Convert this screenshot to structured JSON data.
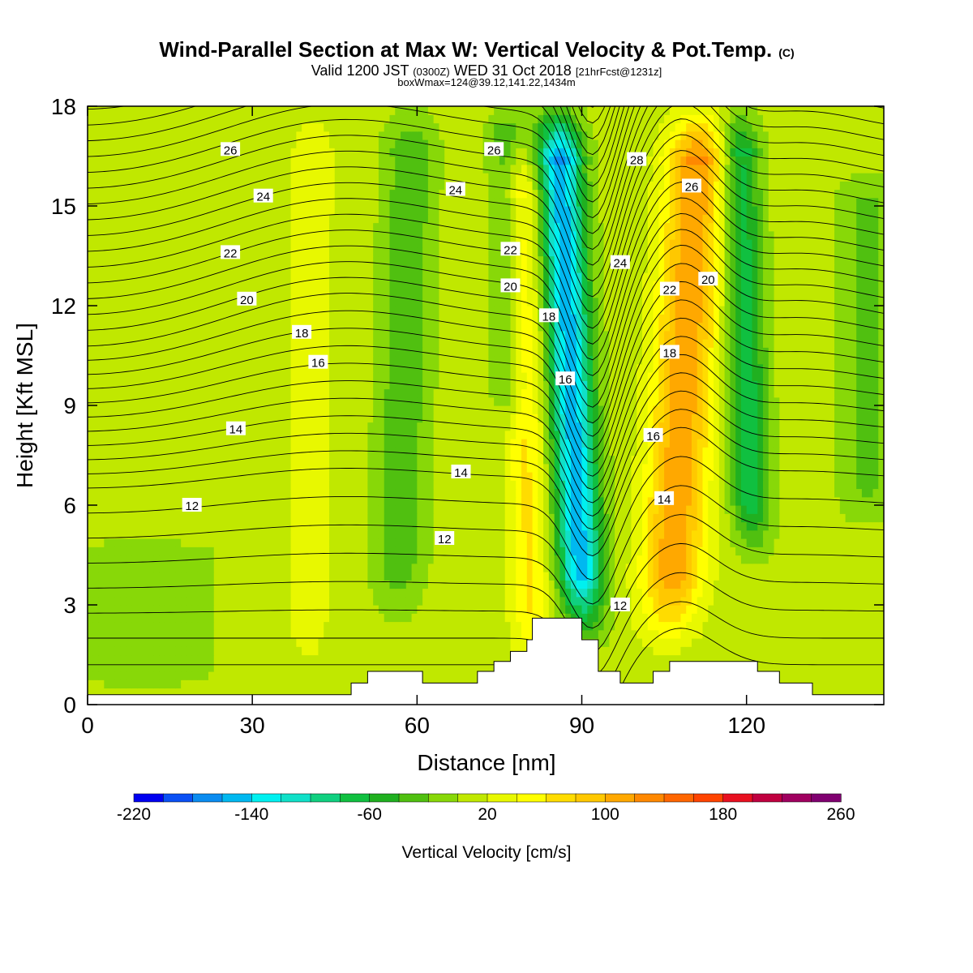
{
  "header": {
    "title_main": "Wind-Parallel Section at Max W: Vertical Velocity & Pot.Temp.",
    "title_copyright": "(C)",
    "valid_prefix": "Valid 1200 JST",
    "valid_utc": "(0300Z)",
    "valid_date": "WED 31 Oct 2018",
    "valid_fcst": "[21hrFcst@1231z]",
    "box_info": "boxWmax=124@39.12,141.22,1434m"
  },
  "chart_data": {
    "type": "heatmap",
    "xlabel": "Distance [nm]",
    "ylabel": "Height [Kft MSL]",
    "xlim": [
      0,
      145
    ],
    "ylim": [
      0,
      18
    ],
    "x_ticks": [
      0,
      30,
      60,
      90,
      120
    ],
    "y_ticks": [
      0,
      3,
      6,
      9,
      12,
      15,
      18
    ],
    "colorbar": {
      "label": "Vertical Velocity [cm/s]",
      "min": -220,
      "max": 260,
      "step": 20,
      "tick_labels": [
        "-220",
        "-140",
        "-60",
        "20",
        "100",
        "180",
        "260"
      ],
      "colors": [
        "#0000f0",
        "#0a50f4",
        "#0a8cf0",
        "#00b8f0",
        "#00f0f0",
        "#10e0c8",
        "#10d080",
        "#10c040",
        "#20b020",
        "#50c010",
        "#88d808",
        "#c0e800",
        "#e8f800",
        "#ffff00",
        "#ffdc00",
        "#ffc800",
        "#ffa800",
        "#ff8800",
        "#ff6600",
        "#ff4400",
        "#e81020",
        "#c00040",
        "#a00060",
        "#800070"
      ]
    },
    "velocity_field": {
      "background": 8,
      "features": [
        {
          "kind": "updraft",
          "x": 40,
          "y_bottom": 0.3,
          "y_top": 18,
          "half_width": 4,
          "tilt": 1.0,
          "peak": 28
        },
        {
          "kind": "updraft",
          "x": 81,
          "y_bottom": 0.3,
          "y_top": 17,
          "half_width": 3.5,
          "tilt": -2.5,
          "peak": 55
        },
        {
          "kind": "downdraft",
          "x": 91,
          "y_bottom": 1.5,
          "y_top": 18,
          "half_width": 4,
          "tilt": -5.5,
          "peak": -160
        },
        {
          "kind": "updraft",
          "x": 105,
          "y_bottom": 1.3,
          "y_top": 18,
          "half_width": 5.5,
          "tilt": 6.5,
          "peak": 110
        },
        {
          "kind": "downdraft",
          "x": 122,
          "y_bottom": 4,
          "y_top": 18,
          "half_width": 3.5,
          "tilt": -3.5,
          "peak": -80
        },
        {
          "kind": "downdraft",
          "x": 56,
          "y_bottom": 2,
          "y_top": 18,
          "half_width": 4.5,
          "tilt": 3,
          "peak": -45
        },
        {
          "kind": "downdraft",
          "x": 78,
          "y_bottom": 8,
          "y_top": 18,
          "half_width": 3,
          "tilt": -2,
          "peak": -45
        },
        {
          "kind": "downdraft",
          "x": 10,
          "y_bottom": 0.3,
          "y_top": 5,
          "half_width": 12,
          "tilt": 0,
          "peak": -25
        },
        {
          "kind": "downdraft",
          "x": 142,
          "y_bottom": 5,
          "y_top": 16,
          "half_width": 5,
          "tilt": 0,
          "peak": -35
        }
      ]
    },
    "terrain": [
      {
        "x": 0,
        "h": 0.3
      },
      {
        "x": 48,
        "h": 0.3
      },
      {
        "x": 48,
        "h": 0.65
      },
      {
        "x": 51,
        "h": 0.65
      },
      {
        "x": 51,
        "h": 1.0
      },
      {
        "x": 61,
        "h": 1.0
      },
      {
        "x": 61,
        "h": 0.65
      },
      {
        "x": 71,
        "h": 0.65
      },
      {
        "x": 71,
        "h": 1.0
      },
      {
        "x": 74,
        "h": 1.0
      },
      {
        "x": 74,
        "h": 1.3
      },
      {
        "x": 77,
        "h": 1.3
      },
      {
        "x": 77,
        "h": 1.6
      },
      {
        "x": 80,
        "h": 1.6
      },
      {
        "x": 80,
        "h": 1.95
      },
      {
        "x": 81,
        "h": 1.95
      },
      {
        "x": 81,
        "h": 2.6
      },
      {
        "x": 90,
        "h": 2.6
      },
      {
        "x": 90,
        "h": 1.95
      },
      {
        "x": 93,
        "h": 1.95
      },
      {
        "x": 93,
        "h": 1.0
      },
      {
        "x": 97,
        "h": 1.0
      },
      {
        "x": 97,
        "h": 0.65
      },
      {
        "x": 103,
        "h": 0.65
      },
      {
        "x": 103,
        "h": 1.0
      },
      {
        "x": 106,
        "h": 1.0
      },
      {
        "x": 106,
        "h": 1.3
      },
      {
        "x": 122,
        "h": 1.3
      },
      {
        "x": 122,
        "h": 1.0
      },
      {
        "x": 126,
        "h": 1.0
      },
      {
        "x": 126,
        "h": 0.65
      },
      {
        "x": 132,
        "h": 0.65
      },
      {
        "x": 132,
        "h": 0.3
      },
      {
        "x": 145,
        "h": 0.3
      }
    ],
    "theta_contours": {
      "interval": 0.5,
      "labeled_levels": [
        12,
        14,
        16,
        18,
        20,
        22,
        24,
        26,
        28
      ]
    },
    "contour_labels": [
      {
        "text": "26",
        "x": 26,
        "y": 16.7
      },
      {
        "text": "24",
        "x": 32,
        "y": 15.3
      },
      {
        "text": "22",
        "x": 26,
        "y": 13.6
      },
      {
        "text": "20",
        "x": 29,
        "y": 12.2
      },
      {
        "text": "18",
        "x": 39,
        "y": 11.2
      },
      {
        "text": "16",
        "x": 42,
        "y": 10.3
      },
      {
        "text": "14",
        "x": 27,
        "y": 8.3
      },
      {
        "text": "12",
        "x": 19,
        "y": 6.0
      },
      {
        "text": "14",
        "x": 68,
        "y": 7.0
      },
      {
        "text": "12",
        "x": 65,
        "y": 5.0
      },
      {
        "text": "24",
        "x": 67,
        "y": 15.5
      },
      {
        "text": "22",
        "x": 77,
        "y": 13.7
      },
      {
        "text": "20",
        "x": 77,
        "y": 12.6
      },
      {
        "text": "26",
        "x": 74,
        "y": 16.7
      },
      {
        "text": "18",
        "x": 84,
        "y": 11.7
      },
      {
        "text": "16",
        "x": 87,
        "y": 9.8
      },
      {
        "text": "24",
        "x": 97,
        "y": 13.3
      },
      {
        "text": "28",
        "x": 100,
        "y": 16.4
      },
      {
        "text": "26",
        "x": 110,
        "y": 15.6
      },
      {
        "text": "22",
        "x": 106,
        "y": 12.5
      },
      {
        "text": "20",
        "x": 113,
        "y": 12.8
      },
      {
        "text": "18",
        "x": 106,
        "y": 10.6
      },
      {
        "text": "16",
        "x": 103,
        "y": 8.1
      },
      {
        "text": "14",
        "x": 105,
        "y": 6.2
      },
      {
        "text": "12",
        "x": 97,
        "y": 3.0
      }
    ]
  }
}
